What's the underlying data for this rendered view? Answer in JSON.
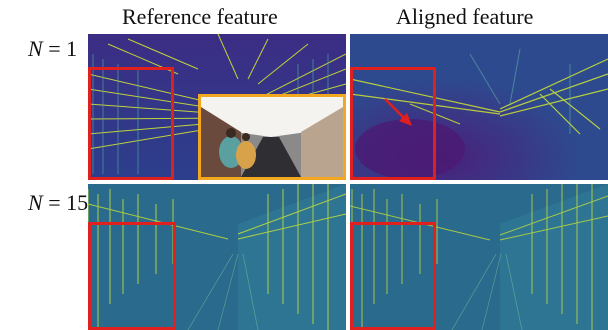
{
  "columns": {
    "reference": "Reference  feature",
    "aligned": "Aligned feature"
  },
  "rows": [
    {
      "var": "N",
      "eq": " = 1"
    },
    {
      "var": "N",
      "eq": " = 15"
    }
  ],
  "colors": {
    "highlight_box": "#e0201e",
    "inset_border": "#f2a81e",
    "feature_dark": "#3b2a7a",
    "feature_mid": "#2c6f8e",
    "feature_bright": "#d9ef2a"
  },
  "icons": {
    "arrow": "red-arrow-icon"
  }
}
